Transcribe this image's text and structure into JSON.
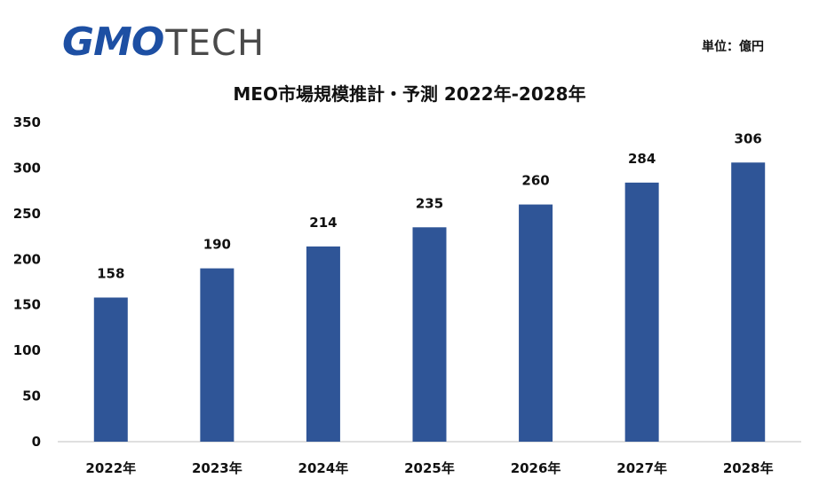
{
  "logo": {
    "primary": "GMO",
    "secondary": "TECH"
  },
  "unit_label": "単位：億円",
  "colors": {
    "bar": "#2f5597",
    "logo_blue": "#1d4fa3",
    "axis": "#bfbfbf"
  },
  "chart_data": {
    "type": "bar",
    "title": "MEO市場規模推計・予測 2022年-2028年",
    "xlabel": "",
    "ylabel": "",
    "categories": [
      "2022年",
      "2023年",
      "2024年",
      "2025年",
      "2026年",
      "2027年",
      "2028年"
    ],
    "values": [
      158,
      190,
      214,
      235,
      260,
      284,
      306
    ],
    "ylim": [
      0,
      350
    ],
    "yticks": [
      0,
      50,
      100,
      150,
      200,
      250,
      300,
      350
    ],
    "grid": false,
    "legend": "none",
    "data_labels": true
  }
}
